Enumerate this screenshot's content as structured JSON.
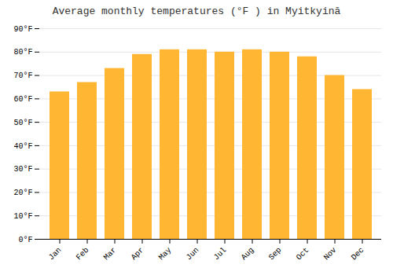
{
  "chart_data": {
    "type": "bar",
    "title": "Average monthly temperatures (°F ) in Myitkyinā",
    "categories": [
      "Jan",
      "Feb",
      "Mar",
      "Apr",
      "May",
      "Jun",
      "Jul",
      "Aug",
      "Sep",
      "Oct",
      "Nov",
      "Dec"
    ],
    "values": [
      63,
      67,
      73,
      79,
      81,
      81,
      80,
      81,
      80,
      78,
      70,
      64
    ],
    "color": "#FFB733",
    "ylim": [
      0,
      90
    ],
    "yticks": [
      {
        "value": 0,
        "label": "0°F"
      },
      {
        "value": 10,
        "label": "10°F"
      },
      {
        "value": 20,
        "label": "20°F"
      },
      {
        "value": 30,
        "label": "30°F"
      },
      {
        "value": 40,
        "label": "40°F"
      },
      {
        "value": 50,
        "label": "50°F"
      },
      {
        "value": 60,
        "label": "60°F"
      },
      {
        "value": 70,
        "label": "70°F"
      },
      {
        "value": 80,
        "label": "80°F"
      },
      {
        "value": 90,
        "label": "90°F"
      }
    ],
    "grid": true
  }
}
